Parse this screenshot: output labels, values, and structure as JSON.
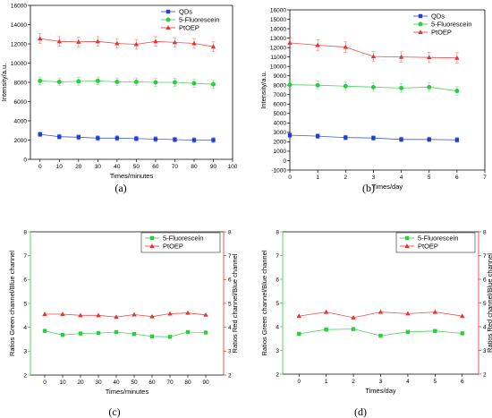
{
  "chart_data": [
    {
      "id": "a",
      "type": "line",
      "panel_label": "(a)",
      "xlabel": "Times/minutes",
      "ylabel": "Intensity/a.u.",
      "xlim": [
        -5,
        100
      ],
      "ylim": [
        0,
        16000
      ],
      "xticks": [
        0,
        10,
        20,
        30,
        40,
        50,
        60,
        70,
        80,
        90,
        100
      ],
      "yticks": [
        0,
        2000,
        4000,
        6000,
        8000,
        10000,
        12000,
        14000,
        16000
      ],
      "x": [
        0,
        10,
        20,
        30,
        40,
        50,
        60,
        70,
        80,
        90
      ],
      "series": [
        {
          "name": "QDs",
          "color": "#1f3fcf",
          "marker": "square",
          "values": [
            2600,
            2350,
            2300,
            2200,
            2200,
            2150,
            2100,
            2050,
            2000,
            2000
          ],
          "error": 250
        },
        {
          "name": "5-Fluorescein",
          "color": "#2ecc40",
          "marker": "circle",
          "values": [
            8150,
            8050,
            8100,
            8150,
            8050,
            8050,
            8000,
            8000,
            7900,
            7800
          ],
          "error": 400
        },
        {
          "name": "PtOEP",
          "color": "#e8322a",
          "marker": "triangle",
          "values": [
            12550,
            12250,
            12200,
            12250,
            12050,
            11950,
            12250,
            12150,
            12050,
            11700
          ],
          "error": 500
        }
      ],
      "legend": "top-right",
      "grid": false
    },
    {
      "id": "b",
      "type": "line",
      "panel_label": "(b)",
      "xlabel": "Times/day",
      "ylabel": "Intensity/a.u.",
      "xlim": [
        0,
        7
      ],
      "ylim": [
        -1000,
        16000
      ],
      "xticks": [
        0,
        1,
        2,
        3,
        4,
        5,
        6,
        7
      ],
      "yticks": [
        -1000,
        0,
        1000,
        2000,
        3000,
        4000,
        5000,
        6000,
        7000,
        8000,
        9000,
        10000,
        11000,
        12000,
        13000,
        14000,
        15000,
        16000
      ],
      "x": [
        0,
        1,
        2,
        3,
        4,
        5,
        6
      ],
      "series": [
        {
          "name": "QDs",
          "color": "#1f3fcf",
          "marker": "square",
          "values": [
            2700,
            2600,
            2450,
            2400,
            2250,
            2250,
            2200
          ],
          "error": 250
        },
        {
          "name": "5-Fluorescein",
          "color": "#2ecc40",
          "marker": "circle",
          "values": [
            8050,
            8000,
            7900,
            7800,
            7700,
            7800,
            7400
          ],
          "error": 450
        },
        {
          "name": "PtOEP",
          "color": "#e8322a",
          "marker": "triangle",
          "values": [
            12500,
            12250,
            12050,
            11050,
            11000,
            10950,
            10900
          ],
          "error": 550
        }
      ],
      "legend": "top-right",
      "grid": false
    },
    {
      "id": "c",
      "type": "line",
      "panel_label": "(c)",
      "xlabel": "Times/minutes",
      "ylabel": "Ratios Green channel/Blue channel",
      "y2label": "Ratios Red channel/Blue channel",
      "xlim": [
        -8,
        100
      ],
      "ylim": [
        2,
        8
      ],
      "y2lim": [
        2,
        8
      ],
      "xticks": [
        0,
        10,
        20,
        30,
        40,
        50,
        60,
        70,
        80,
        90
      ],
      "yticks": [
        2,
        3,
        4,
        5,
        6,
        7,
        8
      ],
      "x": [
        0,
        10,
        20,
        30,
        40,
        50,
        60,
        70,
        80,
        90
      ],
      "series": [
        {
          "name": "5-Fluorescein",
          "color": "#2ecc40",
          "marker": "square",
          "axis": "left",
          "values": [
            3.85,
            3.68,
            3.74,
            3.76,
            3.8,
            3.72,
            3.62,
            3.6,
            3.8,
            3.78
          ]
        },
        {
          "name": "PtOEP",
          "color": "#e8322a",
          "marker": "triangle",
          "axis": "right",
          "values": [
            4.55,
            4.55,
            4.5,
            4.5,
            4.43,
            4.53,
            4.45,
            4.57,
            4.6,
            4.52
          ]
        }
      ],
      "legend": "top-right",
      "grid": false
    },
    {
      "id": "d",
      "type": "line",
      "panel_label": "(d)",
      "xlabel": "Times/day",
      "ylabel": "Ratios Green channel/Blue channel",
      "y2label": "Ratios Red channel/Blue channel",
      "xlim": [
        -0.6,
        6.6
      ],
      "ylim": [
        2,
        8
      ],
      "y2lim": [
        2,
        8
      ],
      "xticks": [
        0,
        1,
        2,
        3,
        4,
        5,
        6
      ],
      "yticks": [
        2,
        3,
        4,
        5,
        6,
        7,
        8
      ],
      "x": [
        0,
        1,
        2,
        3,
        4,
        5,
        6
      ],
      "series": [
        {
          "name": "5-Fluorescein",
          "color": "#2ecc40",
          "marker": "square",
          "axis": "left",
          "values": [
            3.7,
            3.88,
            3.9,
            3.62,
            3.78,
            3.82,
            3.72
          ]
        },
        {
          "name": "PtOEP",
          "color": "#e8322a",
          "marker": "triangle",
          "axis": "right",
          "values": [
            4.45,
            4.62,
            4.38,
            4.62,
            4.55,
            4.62,
            4.45
          ]
        }
      ],
      "legend": "top-right",
      "grid": false
    }
  ]
}
